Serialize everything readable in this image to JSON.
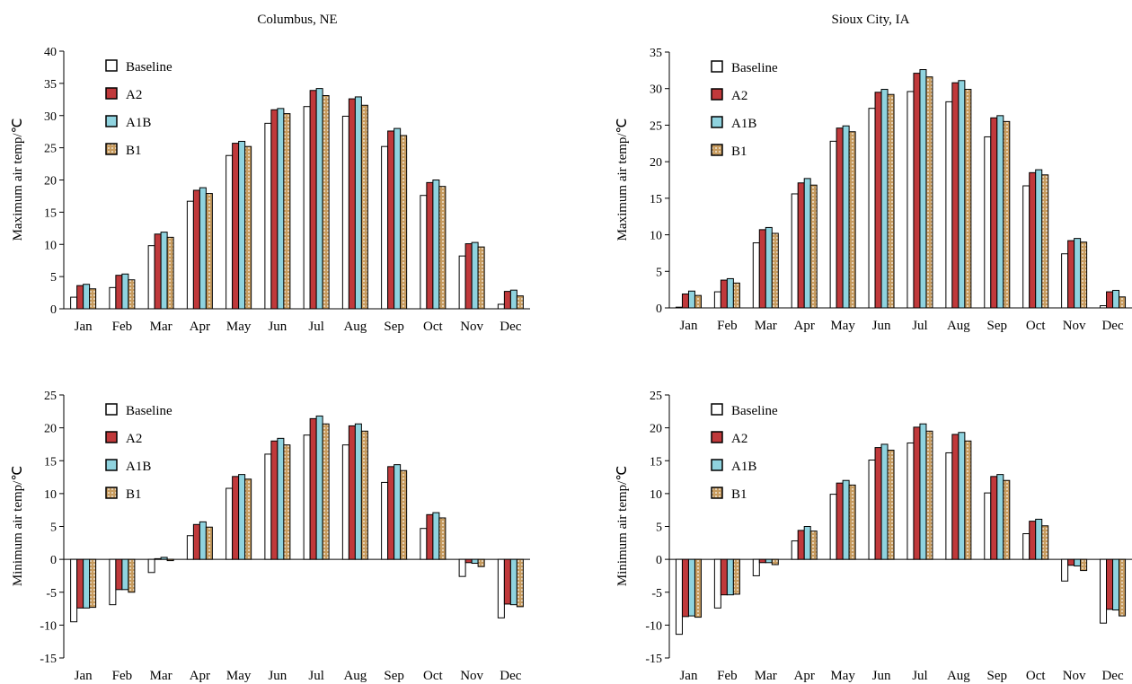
{
  "titles": {
    "left": "Columbus, NE",
    "right": "Sioux City, IA"
  },
  "colors": {
    "Baseline": "#ffffff",
    "A2": "#c0393b",
    "A1B": "#8fd3df",
    "B1": "#c79b5e",
    "stroke": "#000000"
  },
  "chart_data": [
    {
      "type": "bar",
      "panel": "Columbus, NE",
      "ylabel": "Maximum air temp/℃",
      "ylim": [
        0,
        40
      ],
      "yticks": [
        0,
        5,
        10,
        15,
        20,
        25,
        30,
        35,
        40
      ],
      "legend": "top-left",
      "categories": [
        "Jan",
        "Feb",
        "Mar",
        "Apr",
        "May",
        "Jun",
        "Jul",
        "Aug",
        "Sep",
        "Oct",
        "Nov",
        "Dec"
      ],
      "series": [
        {
          "name": "Baseline",
          "values": [
            1.8,
            3.3,
            9.8,
            16.7,
            23.8,
            28.8,
            31.4,
            29.9,
            25.2,
            17.6,
            8.2,
            0.7
          ]
        },
        {
          "name": "A2",
          "values": [
            3.6,
            5.2,
            11.6,
            18.4,
            25.7,
            30.9,
            33.9,
            32.6,
            27.6,
            19.6,
            10.1,
            2.7
          ]
        },
        {
          "name": "A1B",
          "values": [
            3.8,
            5.4,
            11.9,
            18.8,
            26.0,
            31.1,
            34.2,
            32.9,
            28.0,
            20.0,
            10.3,
            2.9
          ]
        },
        {
          "name": "B1",
          "values": [
            3.1,
            4.5,
            11.1,
            17.9,
            25.2,
            30.3,
            33.1,
            31.6,
            26.9,
            19.0,
            9.6,
            2.0
          ]
        }
      ]
    },
    {
      "type": "bar",
      "panel": "Sioux City, IA",
      "ylabel": "Maximum air temp/℃",
      "ylim": [
        0,
        35
      ],
      "yticks": [
        0,
        5,
        10,
        15,
        20,
        25,
        30,
        35
      ],
      "legend": "top-left",
      "categories": [
        "Jan",
        "Feb",
        "Mar",
        "Apr",
        "May",
        "Jun",
        "Jul",
        "Aug",
        "Sep",
        "Oct",
        "Nov",
        "Dec"
      ],
      "series": [
        {
          "name": "Baseline",
          "values": [
            0.1,
            2.2,
            8.9,
            15.6,
            22.8,
            27.3,
            29.6,
            28.2,
            23.4,
            16.7,
            7.4,
            0.3
          ]
        },
        {
          "name": "A2",
          "values": [
            1.9,
            3.8,
            10.7,
            17.1,
            24.6,
            29.5,
            32.1,
            30.8,
            26.0,
            18.5,
            9.2,
            2.2
          ]
        },
        {
          "name": "A1B",
          "values": [
            2.3,
            4.0,
            11.0,
            17.7,
            24.9,
            29.9,
            32.6,
            31.1,
            26.3,
            18.9,
            9.5,
            2.4
          ]
        },
        {
          "name": "B1",
          "values": [
            1.7,
            3.4,
            10.2,
            16.8,
            24.1,
            29.2,
            31.6,
            29.9,
            25.5,
            18.2,
            9.0,
            1.5
          ]
        }
      ]
    },
    {
      "type": "bar",
      "panel": "Columbus, NE",
      "ylabel": "Minimum air temp/℃",
      "ylim": [
        -15,
        25
      ],
      "yticks": [
        -15,
        -10,
        -5,
        0,
        5,
        10,
        15,
        20,
        25
      ],
      "legend": "top-left",
      "categories": [
        "Jan",
        "Feb",
        "Mar",
        "Apr",
        "May",
        "Jun",
        "Jul",
        "Aug",
        "Sep",
        "Oct",
        "Nov",
        "Dec"
      ],
      "series": [
        {
          "name": "Baseline",
          "values": [
            -9.5,
            -6.9,
            -2.0,
            3.6,
            10.8,
            16.0,
            18.9,
            17.4,
            11.7,
            4.7,
            -2.6,
            -8.9
          ]
        },
        {
          "name": "A2",
          "values": [
            -7.4,
            -4.6,
            0.1,
            5.3,
            12.6,
            18.0,
            21.4,
            20.3,
            14.1,
            6.8,
            -0.5,
            -6.8
          ]
        },
        {
          "name": "A1B",
          "values": [
            -7.4,
            -4.6,
            0.3,
            5.7,
            12.9,
            18.4,
            21.8,
            20.6,
            14.4,
            7.1,
            -0.6,
            -6.9
          ]
        },
        {
          "name": "B1",
          "values": [
            -7.3,
            -5.0,
            -0.2,
            4.9,
            12.2,
            17.4,
            20.6,
            19.5,
            13.5,
            6.3,
            -1.1,
            -7.2
          ]
        }
      ]
    },
    {
      "type": "bar",
      "panel": "Sioux City, IA",
      "ylabel": "Minimum air temp/℃",
      "ylim": [
        -15,
        25
      ],
      "yticks": [
        -15,
        -10,
        -5,
        0,
        5,
        10,
        15,
        20,
        25
      ],
      "legend": "top-left",
      "categories": [
        "Jan",
        "Feb",
        "Mar",
        "Apr",
        "May",
        "Jun",
        "Jul",
        "Aug",
        "Sep",
        "Oct",
        "Nov",
        "Dec"
      ],
      "series": [
        {
          "name": "Baseline",
          "values": [
            -11.4,
            -7.4,
            -2.5,
            2.8,
            9.9,
            15.1,
            17.7,
            16.2,
            10.1,
            3.9,
            -3.3,
            -9.7
          ]
        },
        {
          "name": "A2",
          "values": [
            -8.7,
            -5.4,
            -0.5,
            4.4,
            11.6,
            17.0,
            20.1,
            19.0,
            12.6,
            5.8,
            -0.9,
            -7.6
          ]
        },
        {
          "name": "A1B",
          "values": [
            -8.6,
            -5.4,
            -0.5,
            5.0,
            12.0,
            17.5,
            20.6,
            19.3,
            12.9,
            6.1,
            -1.0,
            -7.7
          ]
        },
        {
          "name": "B1",
          "values": [
            -8.8,
            -5.3,
            -0.8,
            4.3,
            11.3,
            16.6,
            19.5,
            18.0,
            12.0,
            5.1,
            -1.7,
            -8.6
          ]
        }
      ]
    }
  ]
}
